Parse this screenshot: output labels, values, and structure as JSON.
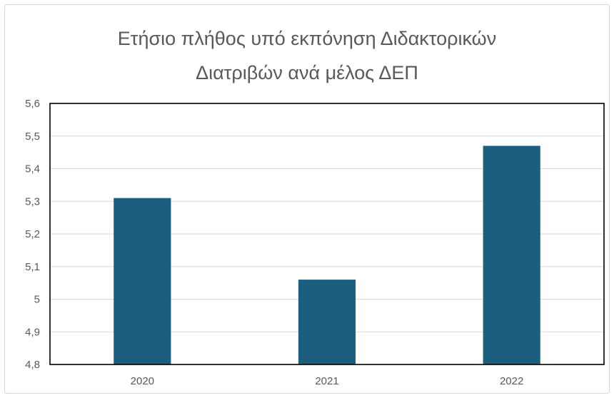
{
  "chart_data": {
    "type": "bar",
    "title_lines": [
      "Ετήσιο πλήθος υπό εκπόνηση  Διδακτορικών",
      "Διατριβών ανά μέλος ΔΕΠ"
    ],
    "categories": [
      "2020",
      "2021",
      "2022"
    ],
    "values": [
      5.31,
      5.06,
      5.47
    ],
    "ylim": [
      4.8,
      5.6
    ],
    "yticks": [
      "4,8",
      "4,9",
      "5",
      "5,1",
      "5,2",
      "5,3",
      "5,4",
      "5,5",
      "5,6"
    ],
    "ytick_values": [
      4.8,
      4.9,
      5.0,
      5.1,
      5.2,
      5.3,
      5.4,
      5.5,
      5.6
    ],
    "grid": true,
    "legend": "none",
    "bar_color": "#1b5e7e",
    "grid_color": "#d9d9d9",
    "plot_border_color": "#000000"
  }
}
